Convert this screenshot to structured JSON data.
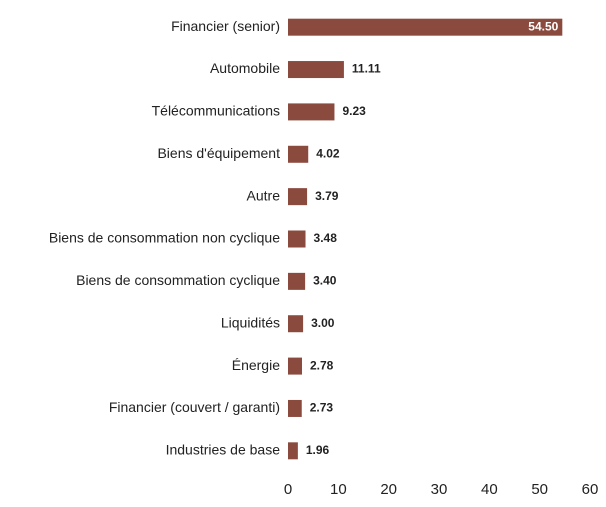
{
  "chart_data": {
    "type": "hbar",
    "categories": [
      "Financier (senior)",
      "Automobile",
      "Télécommunications",
      "Biens d'équipement",
      "Autre",
      "Biens de consommation non cyclique",
      "Biens de consommation cyclique",
      "Liquidités",
      "Énergie",
      "Financier (couvert / garanti)",
      "Industries de base"
    ],
    "values": [
      54.5,
      11.11,
      9.23,
      4.02,
      3.79,
      3.48,
      3.4,
      3.0,
      2.78,
      2.73,
      1.96
    ],
    "value_labels": [
      "54.50",
      "11.11",
      "9.23",
      "4.02",
      "3.79",
      "3.48",
      "3.40",
      "3.00",
      "2.78",
      "2.73",
      "1.96"
    ],
    "color": "#8b4a3e",
    "xlim": [
      0,
      60
    ],
    "xticks": [
      0,
      10,
      20,
      30,
      40,
      50,
      60
    ],
    "grid": false
  }
}
